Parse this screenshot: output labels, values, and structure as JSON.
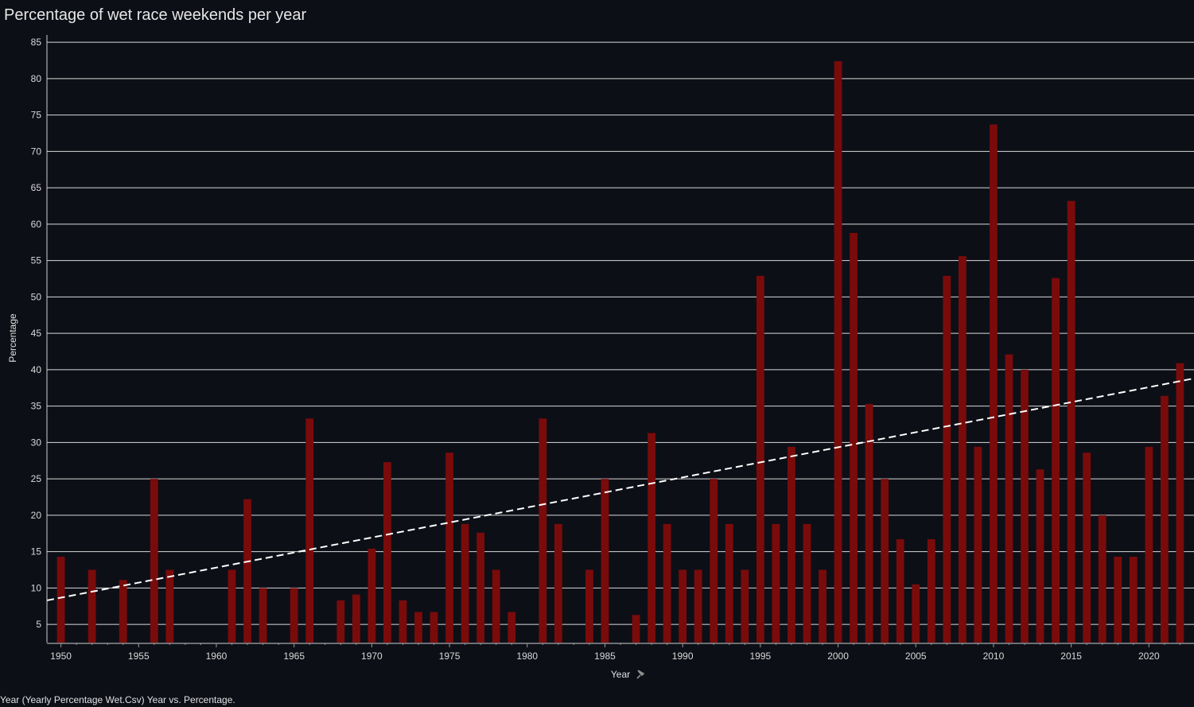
{
  "chart_data": {
    "type": "bar",
    "title": "Percentage of wet race weekends per year",
    "xlabel": "Year",
    "ylabel": "Percentage",
    "caption": "Year (Yearly Percentage Wet.Csv) Year vs. Percentage.",
    "xlim": [
      1949.1,
      2022.9
    ],
    "ylim": [
      2.5,
      86
    ],
    "x_ticks": [
      1950,
      1955,
      1960,
      1965,
      1970,
      1975,
      1980,
      1985,
      1990,
      1995,
      2000,
      2005,
      2010,
      2015,
      2020
    ],
    "y_ticks": [
      5,
      10,
      15,
      20,
      25,
      30,
      35,
      40,
      45,
      50,
      55,
      60,
      65,
      70,
      75,
      80,
      85
    ],
    "grid": "horizontal",
    "bar_color": "#7a0b0b",
    "trend_color": "#ffffff",
    "bars": [
      {
        "x": 1950,
        "y": 14.3
      },
      {
        "x": 1952,
        "y": 12.5
      },
      {
        "x": 1954,
        "y": 11.1
      },
      {
        "x": 1956,
        "y": 25.0
      },
      {
        "x": 1957,
        "y": 12.5
      },
      {
        "x": 1961,
        "y": 12.5
      },
      {
        "x": 1962,
        "y": 22.2
      },
      {
        "x": 1963,
        "y": 10.0
      },
      {
        "x": 1965,
        "y": 10.0
      },
      {
        "x": 1966,
        "y": 33.3
      },
      {
        "x": 1968,
        "y": 8.3
      },
      {
        "x": 1969,
        "y": 9.1
      },
      {
        "x": 1970,
        "y": 15.4
      },
      {
        "x": 1971,
        "y": 27.3
      },
      {
        "x": 1972,
        "y": 8.3
      },
      {
        "x": 1973,
        "y": 6.7
      },
      {
        "x": 1974,
        "y": 6.7
      },
      {
        "x": 1975,
        "y": 28.6
      },
      {
        "x": 1976,
        "y": 18.8
      },
      {
        "x": 1977,
        "y": 17.6
      },
      {
        "x": 1978,
        "y": 12.5
      },
      {
        "x": 1979,
        "y": 6.7
      },
      {
        "x": 1981,
        "y": 33.3
      },
      {
        "x": 1982,
        "y": 18.8
      },
      {
        "x": 1984,
        "y": 12.5
      },
      {
        "x": 1985,
        "y": 25.0
      },
      {
        "x": 1987,
        "y": 6.3
      },
      {
        "x": 1988,
        "y": 31.3
      },
      {
        "x": 1989,
        "y": 18.8
      },
      {
        "x": 1990,
        "y": 12.5
      },
      {
        "x": 1991,
        "y": 12.5
      },
      {
        "x": 1992,
        "y": 25.0
      },
      {
        "x": 1993,
        "y": 18.8
      },
      {
        "x": 1994,
        "y": 12.5
      },
      {
        "x": 1995,
        "y": 52.9
      },
      {
        "x": 1996,
        "y": 18.8
      },
      {
        "x": 1997,
        "y": 29.4
      },
      {
        "x": 1998,
        "y": 18.8
      },
      {
        "x": 1999,
        "y": 12.5
      },
      {
        "x": 2000,
        "y": 82.4
      },
      {
        "x": 2001,
        "y": 58.8
      },
      {
        "x": 2002,
        "y": 35.3
      },
      {
        "x": 2003,
        "y": 25.0
      },
      {
        "x": 2004,
        "y": 16.7
      },
      {
        "x": 2005,
        "y": 10.5
      },
      {
        "x": 2006,
        "y": 16.7
      },
      {
        "x": 2007,
        "y": 52.9
      },
      {
        "x": 2008,
        "y": 55.6
      },
      {
        "x": 2009,
        "y": 29.4
      },
      {
        "x": 2010,
        "y": 73.7
      },
      {
        "x": 2011,
        "y": 42.1
      },
      {
        "x": 2012,
        "y": 40.0
      },
      {
        "x": 2013,
        "y": 26.3
      },
      {
        "x": 2014,
        "y": 52.6
      },
      {
        "x": 2015,
        "y": 63.2
      },
      {
        "x": 2016,
        "y": 28.6
      },
      {
        "x": 2017,
        "y": 20.0
      },
      {
        "x": 2018,
        "y": 14.3
      },
      {
        "x": 2019,
        "y": 14.3
      },
      {
        "x": 2020,
        "y": 29.4
      },
      {
        "x": 2021,
        "y": 36.4
      },
      {
        "x": 2022,
        "y": 40.9
      }
    ],
    "trend_line": {
      "x": [
        1949.1,
        2022.9
      ],
      "y": [
        8.3,
        38.8
      ]
    }
  }
}
